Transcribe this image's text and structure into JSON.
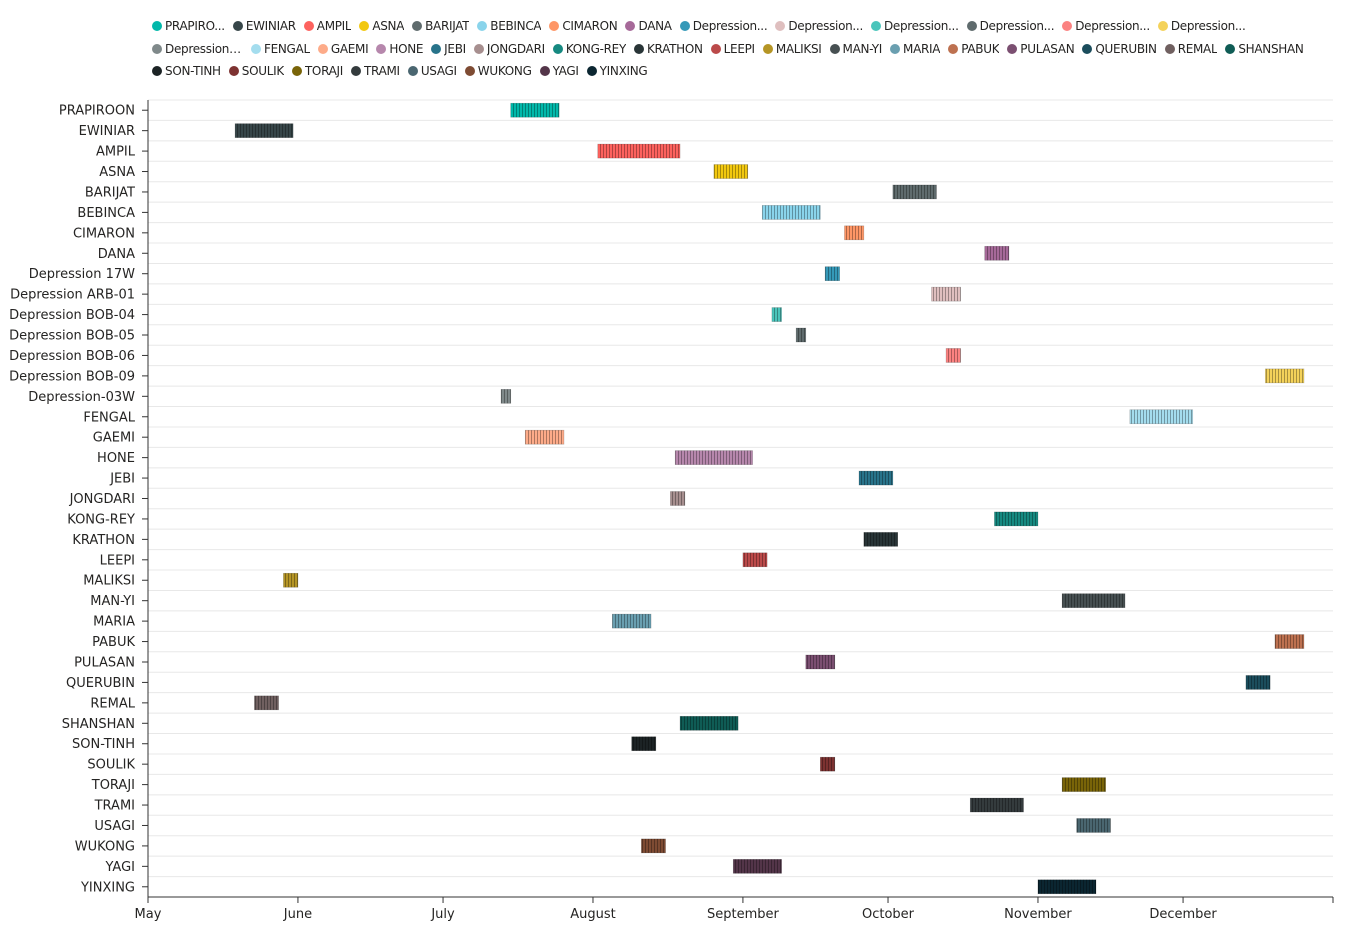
{
  "chart_data": {
    "type": "gantt",
    "title": "",
    "xlabel": "",
    "ylabel": "",
    "legend_placement": "top",
    "grid": {
      "horizontal": true,
      "vertical": false
    },
    "x_range": [
      "2024-05-01",
      "2025-01-01"
    ],
    "x_ticks": [
      {
        "label": "May",
        "date": "2024-05-01"
      },
      {
        "label": "June",
        "date": "2024-06-01"
      },
      {
        "label": "July",
        "date": "2024-07-01"
      },
      {
        "label": "August",
        "date": "2024-08-01"
      },
      {
        "label": "September",
        "date": "2024-09-01"
      },
      {
        "label": "October",
        "date": "2024-10-01"
      },
      {
        "label": "November",
        "date": "2024-11-01"
      },
      {
        "label": "December",
        "date": "2024-12-01"
      }
    ],
    "legend": [
      {
        "label": "PRAPIRO...",
        "color": "#01B8AA"
      },
      {
        "label": "EWINIAR",
        "color": "#374649"
      },
      {
        "label": "AMPIL",
        "color": "#FD625E"
      },
      {
        "label": "ASNA",
        "color": "#F2C80F"
      },
      {
        "label": "BARIJAT",
        "color": "#5F6B6D"
      },
      {
        "label": "BEBINCA",
        "color": "#8AD4EB"
      },
      {
        "label": "CIMARON",
        "color": "#FE9666"
      },
      {
        "label": "DANA",
        "color": "#A66999"
      },
      {
        "label": "Depression...",
        "color": "#3599B8"
      },
      {
        "label": "Depression...",
        "color": "#DFBFBF"
      },
      {
        "label": "Depression...",
        "color": "#4AC5BB"
      },
      {
        "label": "Depression...",
        "color": "#5F6B6D"
      },
      {
        "label": "Depression...",
        "color": "#FB8281"
      },
      {
        "label": "Depression...",
        "color": "#F4D25A"
      },
      {
        "label": "Depression-...",
        "color": "#7F898A"
      },
      {
        "label": "FENGAL",
        "color": "#A4DDEE"
      },
      {
        "label": "GAEMI",
        "color": "#FDAB89"
      },
      {
        "label": "HONE",
        "color": "#B687AC"
      },
      {
        "label": "JEBI",
        "color": "#28738A"
      },
      {
        "label": "JONGDARI",
        "color": "#A78F8F"
      },
      {
        "label": "KONG-REY",
        "color": "#168980"
      },
      {
        "label": "KRATHON",
        "color": "#293537"
      },
      {
        "label": "LEEPI",
        "color": "#BB4A4A"
      },
      {
        "label": "MALIKSI",
        "color": "#B59525"
      },
      {
        "label": "MAN-YI",
        "color": "#475052"
      },
      {
        "label": "MARIA",
        "color": "#6A9FB0"
      },
      {
        "label": "PABUK",
        "color": "#BD7150"
      },
      {
        "label": "PULASAN",
        "color": "#7B4F71"
      },
      {
        "label": "QUERUBIN",
        "color": "#1B4D5C"
      },
      {
        "label": "REMAL",
        "color": "#706060"
      },
      {
        "label": "SHANSHAN",
        "color": "#0F5C55"
      },
      {
        "label": "SON-TINH",
        "color": "#1C2325"
      },
      {
        "label": "SOULIK",
        "color": "#7D3231"
      },
      {
        "label": "TORAJI",
        "color": "#796408"
      },
      {
        "label": "TRAMI",
        "color": "#343B3D"
      },
      {
        "label": "USAGI",
        "color": "#4A6670"
      },
      {
        "label": "WUKONG",
        "color": "#7E4B33"
      },
      {
        "label": "YAGI",
        "color": "#533549"
      },
      {
        "label": "YINXING",
        "color": "#0B2631"
      }
    ],
    "series": [
      {
        "category": "PRAPIROON",
        "start": "2024-07-15",
        "end": "2024-07-25",
        "color": "#01B8AA"
      },
      {
        "category": "EWINIAR",
        "start": "2024-05-19",
        "end": "2024-05-31",
        "color": "#374649"
      },
      {
        "category": "AMPIL",
        "start": "2024-08-02",
        "end": "2024-08-19",
        "color": "#FD625E"
      },
      {
        "category": "ASNA",
        "start": "2024-08-26",
        "end": "2024-09-02",
        "color": "#F2C80F"
      },
      {
        "category": "BARIJAT",
        "start": "2024-10-02",
        "end": "2024-10-11",
        "color": "#5F6B6D"
      },
      {
        "category": "BEBINCA",
        "start": "2024-09-05",
        "end": "2024-09-17",
        "color": "#8AD4EB"
      },
      {
        "category": "CIMARON",
        "start": "2024-09-22",
        "end": "2024-09-26",
        "color": "#FE9666"
      },
      {
        "category": "DANA",
        "start": "2024-10-21",
        "end": "2024-10-26",
        "color": "#A66999"
      },
      {
        "category": "Depression 17W",
        "start": "2024-09-18",
        "end": "2024-09-21",
        "color": "#3599B8"
      },
      {
        "category": "Depression ARB-01",
        "start": "2024-10-10",
        "end": "2024-10-16",
        "color": "#DFBFBF"
      },
      {
        "category": "Depression BOB-04",
        "start": "2024-09-07",
        "end": "2024-09-09",
        "color": "#4AC5BB"
      },
      {
        "category": "Depression BOB-05",
        "start": "2024-09-12",
        "end": "2024-09-14",
        "color": "#5F6B6D"
      },
      {
        "category": "Depression BOB-06",
        "start": "2024-10-13",
        "end": "2024-10-16",
        "color": "#FB8281"
      },
      {
        "category": "Depression BOB-09",
        "start": "2024-12-18",
        "end": "2024-12-26",
        "color": "#F4D25A"
      },
      {
        "category": "Depression-03W",
        "start": "2024-07-13",
        "end": "2024-07-15",
        "color": "#7F898A"
      },
      {
        "category": "FENGAL",
        "start": "2024-11-20",
        "end": "2024-12-03",
        "color": "#A4DDEE"
      },
      {
        "category": "GAEMI",
        "start": "2024-07-18",
        "end": "2024-07-26",
        "color": "#FDAB89"
      },
      {
        "category": "HONE",
        "start": "2024-08-18",
        "end": "2024-09-03",
        "color": "#B687AC"
      },
      {
        "category": "JEBI",
        "start": "2024-09-25",
        "end": "2024-10-02",
        "color": "#28738A"
      },
      {
        "category": "JONGDARI",
        "start": "2024-08-17",
        "end": "2024-08-20",
        "color": "#A78F8F"
      },
      {
        "category": "KONG-REY",
        "start": "2024-10-23",
        "end": "2024-11-01",
        "color": "#168980"
      },
      {
        "category": "KRATHON",
        "start": "2024-09-26",
        "end": "2024-10-03",
        "color": "#293537"
      },
      {
        "category": "LEEPI",
        "start": "2024-09-01",
        "end": "2024-09-06",
        "color": "#BB4A4A"
      },
      {
        "category": "MALIKSI",
        "start": "2024-05-29",
        "end": "2024-06-01",
        "color": "#B59525"
      },
      {
        "category": "MAN-YI",
        "start": "2024-11-06",
        "end": "2024-11-19",
        "color": "#475052"
      },
      {
        "category": "MARIA",
        "start": "2024-08-05",
        "end": "2024-08-13",
        "color": "#6A9FB0"
      },
      {
        "category": "PABUK",
        "start": "2024-12-20",
        "end": "2024-12-26",
        "color": "#BD7150"
      },
      {
        "category": "PULASAN",
        "start": "2024-09-14",
        "end": "2024-09-20",
        "color": "#7B4F71"
      },
      {
        "category": "QUERUBIN",
        "start": "2024-12-14",
        "end": "2024-12-19",
        "color": "#1B4D5C"
      },
      {
        "category": "REMAL",
        "start": "2024-05-23",
        "end": "2024-05-28",
        "color": "#706060"
      },
      {
        "category": "SHANSHAN",
        "start": "2024-08-19",
        "end": "2024-08-31",
        "color": "#0F5C55"
      },
      {
        "category": "SON-TINH",
        "start": "2024-08-09",
        "end": "2024-08-14",
        "color": "#1C2325"
      },
      {
        "category": "SOULIK",
        "start": "2024-09-17",
        "end": "2024-09-20",
        "color": "#7D3231"
      },
      {
        "category": "TORAJI",
        "start": "2024-11-06",
        "end": "2024-11-15",
        "color": "#796408"
      },
      {
        "category": "TRAMI",
        "start": "2024-10-18",
        "end": "2024-10-29",
        "color": "#343B3D"
      },
      {
        "category": "USAGI",
        "start": "2024-11-09",
        "end": "2024-11-16",
        "color": "#4A6670"
      },
      {
        "category": "WUKONG",
        "start": "2024-08-11",
        "end": "2024-08-16",
        "color": "#7E4B33"
      },
      {
        "category": "YAGI",
        "start": "2024-08-30",
        "end": "2024-09-09",
        "color": "#533549"
      },
      {
        "category": "YINXING",
        "start": "2024-11-01",
        "end": "2024-11-13",
        "color": "#0B2631"
      }
    ]
  }
}
